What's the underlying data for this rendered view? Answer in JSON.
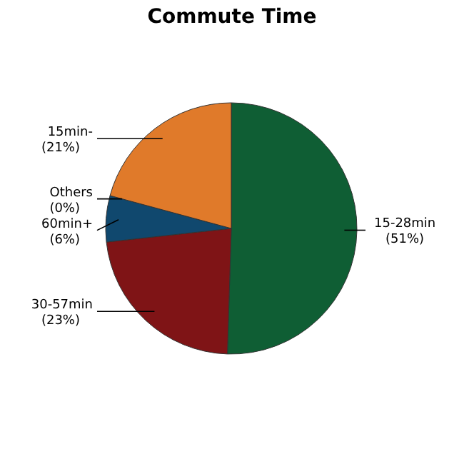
{
  "chart_data": {
    "type": "pie",
    "title": "Commute Time",
    "categories": [
      "15-28min",
      "30-57min",
      "60min+",
      "Others",
      "15min-"
    ],
    "values": [
      51,
      23,
      6,
      0,
      21
    ],
    "value_labels": [
      "(51%)",
      "(23%)",
      "(6%)",
      "(0%)",
      "(21%)"
    ],
    "colors": [
      "#0f5e34",
      "#7f1416",
      "#10486e",
      null,
      "#e07a2a"
    ]
  }
}
